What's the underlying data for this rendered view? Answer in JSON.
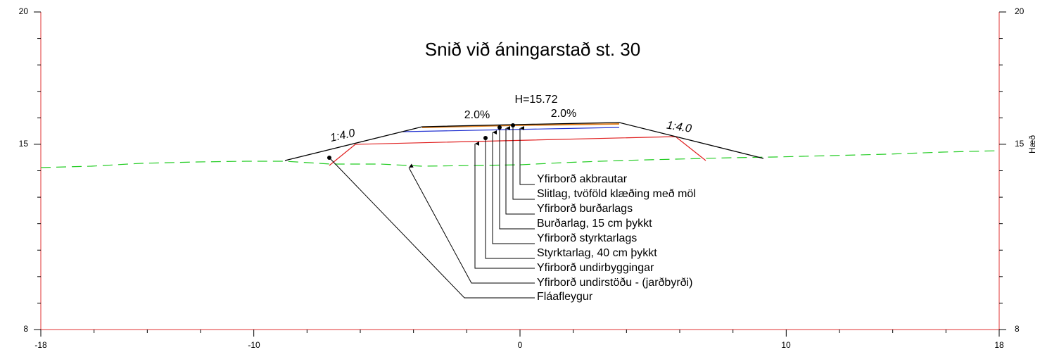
{
  "title": "Snið við áningarstað st. 30",
  "annotations": {
    "elevation": "H=15.72",
    "crossfall_left": "2.0%",
    "crossfall_right": "2.0%",
    "slope_left": "1:4.0",
    "slope_right": "1:4.0"
  },
  "axes": {
    "left_ticks": [
      20,
      15,
      8
    ],
    "right_ticks": [
      20,
      15,
      8
    ],
    "right_label": "Hæð",
    "bottom_ticks": [
      -18,
      -10,
      0,
      10,
      18
    ]
  },
  "labels": [
    "Yfirborð akbrautar",
    "Slitlag, tvöföld klæðing með möl",
    "Yfirborð burðarlags",
    "Burðarlag, 15 cm þykkt",
    "Yfirborð styrktarlags",
    "Styrktarlag, 40 cm þykkt",
    "Yfirborð undirbyggingar",
    "Yfirborð undirstöðu - (jarðbyrði)",
    "Fláafleygur"
  ]
}
